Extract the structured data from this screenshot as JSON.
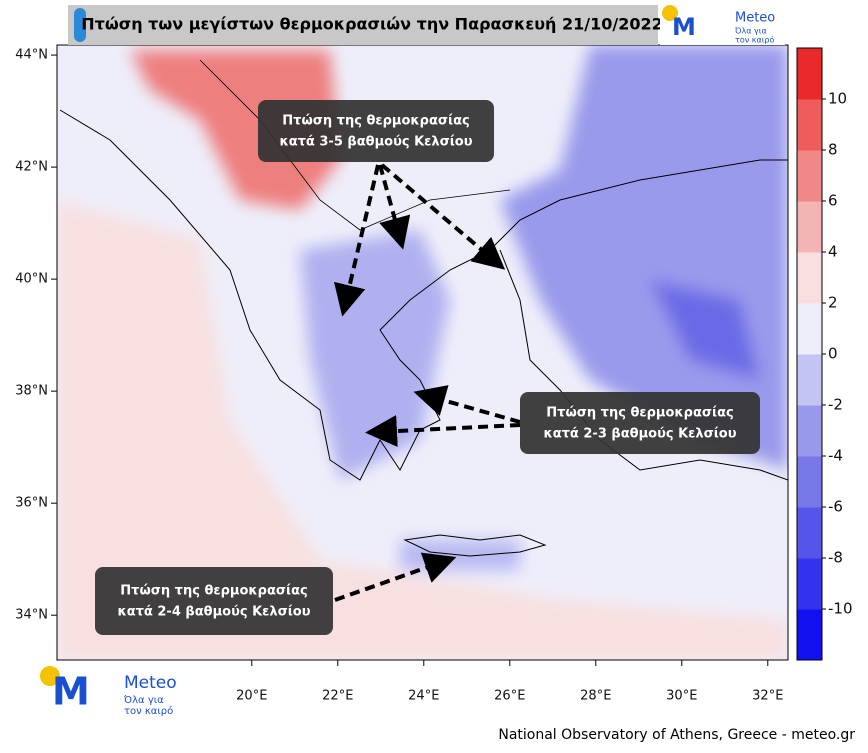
{
  "header": {
    "title": "Πτώση των μεγίστων θερμοκρασιών την Παρασκευή 21/10/2022"
  },
  "logo": {
    "name": "Meteo",
    "slogan_1": "Όλα για",
    "slogan_2": "τον καιρό"
  },
  "map": {
    "xlim": [
      15.47,
      32.47
    ],
    "ylim": [
      33.2,
      44.18
    ],
    "xticks": [
      {
        "value": 20,
        "label": "20°E"
      },
      {
        "value": 22,
        "label": "22°E"
      },
      {
        "value": 24,
        "label": "24°E"
      },
      {
        "value": 26,
        "label": "26°E"
      },
      {
        "value": 28,
        "label": "28°E"
      },
      {
        "value": 30,
        "label": "30°E"
      },
      {
        "value": 32,
        "label": "32°E"
      }
    ],
    "yticks": [
      {
        "value": 34,
        "label": "34°N"
      },
      {
        "value": 36,
        "label": "36°N"
      },
      {
        "value": 38,
        "label": "38°N"
      },
      {
        "value": 40,
        "label": "40°N"
      },
      {
        "value": 42,
        "label": "42°N"
      },
      {
        "value": 44,
        "label": "44°N"
      }
    ]
  },
  "annotations": [
    {
      "line_1": "Πτώση της θερμοκρασίας",
      "line_2": "κατά 3-5 βαθμούς Κελσίου"
    },
    {
      "line_1": "Πτώση της θερμοκρασίας",
      "line_2": "κατά 2-3 βαθμούς Κελσίου"
    },
    {
      "line_1": "Πτώση της θερμοκρασίας",
      "line_2": "κατά 2-4 βαθμούς Κελσίου"
    }
  ],
  "colorbar": {
    "lim": [
      -12,
      12
    ],
    "ticks": [
      -10,
      -8,
      -6,
      -4,
      -2,
      0,
      2,
      4,
      6,
      8,
      10
    ],
    "colors": [
      "#1010f0",
      "#3333ee",
      "#5555ea",
      "#7777e8",
      "#9999ec",
      "#c4c4f4",
      "#eeeefa",
      "#f8dede",
      "#f4b4b4",
      "#f08888",
      "#ee5c5c",
      "#ea2a2a"
    ]
  },
  "footer": "National Observatory of Athens, Greece - meteo.gr"
}
